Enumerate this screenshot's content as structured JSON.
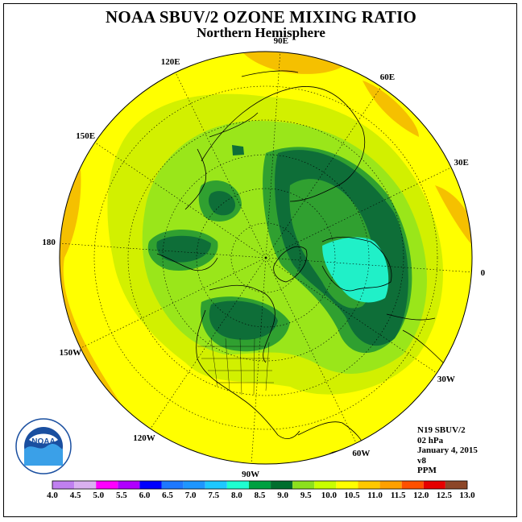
{
  "title": "NOAA SBUV/2 OZONE MIXING RATIO",
  "subtitle": "Northern Hemisphere",
  "longitudes": [
    {
      "label": "90E",
      "lon": 90
    },
    {
      "label": "60E",
      "lon": 60
    },
    {
      "label": "30E",
      "lon": 30
    },
    {
      "label": "0",
      "lon": 0
    },
    {
      "label": "30W",
      "lon": -30
    },
    {
      "label": "60W",
      "lon": -60
    },
    {
      "label": "90W",
      "lon": -90
    },
    {
      "label": "120W",
      "lon": -120
    },
    {
      "label": "150W",
      "lon": -150
    },
    {
      "label": "180",
      "lon": 180
    },
    {
      "label": "150E",
      "lon": 150
    },
    {
      "label": "120E",
      "lon": 120
    }
  ],
  "info": {
    "instrument": "N19 SBUV/2",
    "level": "02 hPa",
    "date": "January 4, 2015",
    "version": "v8",
    "units": "PPM"
  },
  "colorbar": {
    "labels": [
      "4.0",
      "4.5",
      "5.0",
      "5.5",
      "6.0",
      "6.5",
      "7.0",
      "7.5",
      "8.0",
      "8.5",
      "9.0",
      "9.5",
      "10.0",
      "10.5",
      "11.0",
      "11.5",
      "12.0",
      "12.5",
      "13.0"
    ],
    "colors": [
      "#c080f0",
      "#dab0f0",
      "#ff00ff",
      "#b000ff",
      "#0000ff",
      "#1e78ff",
      "#1e96ff",
      "#1ec8ff",
      "#1effd0",
      "#00a040",
      "#006e2e",
      "#8ce01e",
      "#c8ff00",
      "#ffff00",
      "#ffc800",
      "#ffa000",
      "#ff5000",
      "#e60000",
      "#8c4628"
    ]
  },
  "logo": {
    "text": "NOAA"
  },
  "colors": {
    "ozone_10_5": "#ffff00",
    "ozone_11_0": "#f5c000",
    "ozone_10_0": "#d2f000",
    "ozone_9_5": "#9ae61a",
    "ozone_9_0": "#30a030",
    "ozone_8_5": "#0e6e38",
    "ozone_8_0": "#20f0c8"
  }
}
